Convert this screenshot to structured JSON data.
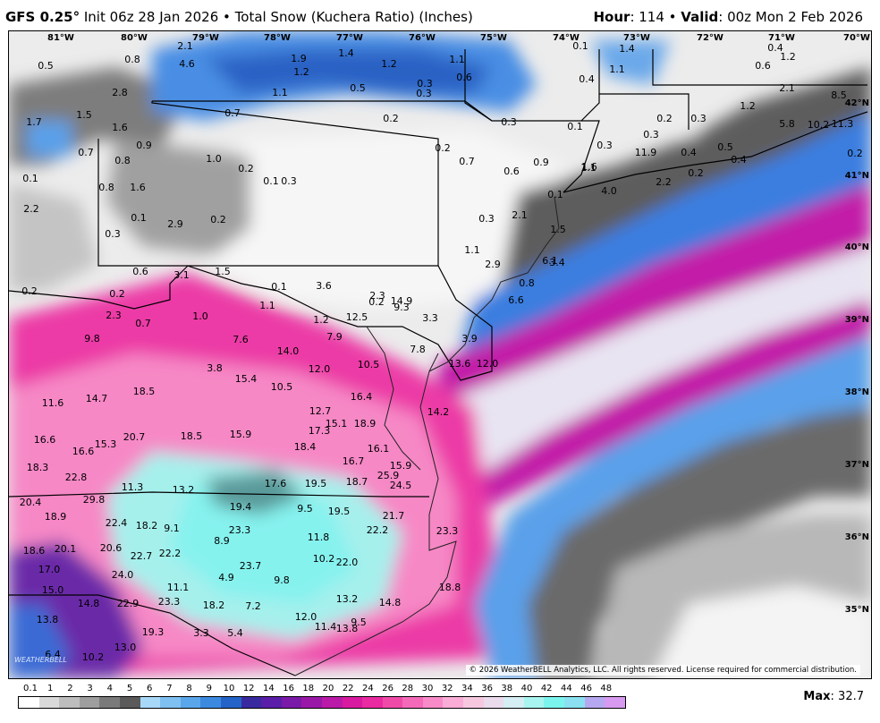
{
  "header": {
    "model": "GFS 0.25°",
    "description": "Init 06z 28 Jan 2026 • Total Snow (Kuchera Ratio) (Inches)",
    "hour_label": "Hour",
    "hour": "114",
    "valid_label": "Valid",
    "valid": "00z Mon 2 Feb 2026"
  },
  "map": {
    "longitudes": [
      "81°W",
      "80°W",
      "79°W",
      "78°W",
      "77°W",
      "76°W",
      "75°W",
      "74°W",
      "73°W",
      "72°W",
      "71°W",
      "70°W"
    ],
    "latitudes": [
      "42°N",
      "41°N",
      "40°N",
      "39°N",
      "38°N",
      "37°N",
      "36°N",
      "35°N"
    ],
    "copyright": "© 2026 WeatherBELL Analytics, LLC. All rights reserved. License required for commercial distribution.",
    "logo": "WEATHERBELL",
    "values": [
      {
        "t": "2.1"
      },
      {
        "t": "0.8"
      },
      {
        "t": "4.6"
      },
      {
        "t": "2.8"
      },
      {
        "t": "1.9"
      },
      {
        "t": "1.4"
      },
      {
        "t": "1.2"
      },
      {
        "t": "1.1"
      },
      {
        "t": "0.1"
      },
      {
        "t": "1.4"
      },
      {
        "t": "0.4"
      },
      {
        "t": "1.2"
      },
      {
        "t": "0.5"
      },
      {
        "t": "1.2"
      },
      {
        "t": "0.6"
      },
      {
        "t": "0.3"
      },
      {
        "t": "0.5"
      },
      {
        "t": "0.3"
      },
      {
        "t": "1.1"
      },
      {
        "t": "0.4"
      },
      {
        "t": "0.6"
      },
      {
        "t": "1.1"
      },
      {
        "t": "2.1"
      },
      {
        "t": "8.5"
      },
      {
        "t": "1.5"
      },
      {
        "t": "1.7"
      },
      {
        "t": "1.6"
      },
      {
        "t": "0.7"
      },
      {
        "t": "0.2"
      },
      {
        "t": "0.3"
      },
      {
        "t": "0.2"
      },
      {
        "t": "0.3"
      },
      {
        "t": "1.2"
      },
      {
        "t": "5.8"
      },
      {
        "t": "10.2"
      },
      {
        "t": "11.3"
      },
      {
        "t": "0.9"
      },
      {
        "t": "0.7"
      },
      {
        "t": "0.1"
      },
      {
        "t": "0.3"
      },
      {
        "t": "0.3"
      },
      {
        "t": "0.8"
      },
      {
        "t": "1.0"
      },
      {
        "t": "0.2"
      },
      {
        "t": "0.1"
      },
      {
        "t": "0.2"
      },
      {
        "t": "0.7"
      },
      {
        "t": "0.6"
      },
      {
        "t": "0.9"
      },
      {
        "t": "1.1"
      },
      {
        "t": "11.9"
      },
      {
        "t": "0.4"
      },
      {
        "t": "0.5"
      },
      {
        "t": "0.2"
      },
      {
        "t": "0.1"
      },
      {
        "t": "0.3"
      },
      {
        "t": "0.8"
      },
      {
        "t": "1.6"
      },
      {
        "t": "0.1"
      },
      {
        "t": "1.6"
      },
      {
        "t": "4.0"
      },
      {
        "t": "2.2"
      },
      {
        "t": "0.2"
      },
      {
        "t": "0.4"
      },
      {
        "t": "2.2"
      },
      {
        "t": "0.1"
      },
      {
        "t": "0.2"
      },
      {
        "t": "0.3"
      },
      {
        "t": "2.1"
      },
      {
        "t": "1.5"
      },
      {
        "t": "0.3"
      },
      {
        "t": "2.9"
      },
      {
        "t": "1.1"
      },
      {
        "t": "2.9"
      },
      {
        "t": "6.1"
      },
      {
        "t": "0.6"
      },
      {
        "t": "3.1"
      },
      {
        "t": "1.5"
      },
      {
        "t": "0.8"
      },
      {
        "t": "3.4"
      },
      {
        "t": "0.2"
      },
      {
        "t": "0.2"
      },
      {
        "t": "0.1"
      },
      {
        "t": "3.6"
      },
      {
        "t": "2.3"
      },
      {
        "t": "0.2"
      },
      {
        "t": "9.3"
      },
      {
        "t": "6.6"
      },
      {
        "t": "1.1"
      },
      {
        "t": "14.9"
      },
      {
        "t": "2.3"
      },
      {
        "t": "0.7"
      },
      {
        "t": "1.0"
      },
      {
        "t": "1.2"
      },
      {
        "t": "12.5"
      },
      {
        "t": "3.3"
      },
      {
        "t": "9.8"
      },
      {
        "t": "7.9"
      },
      {
        "t": "7.6"
      },
      {
        "t": "3.9"
      },
      {
        "t": "14.0"
      },
      {
        "t": "7.8"
      },
      {
        "t": "3.8"
      },
      {
        "t": "12.0"
      },
      {
        "t": "10.5"
      },
      {
        "t": "13.6"
      },
      {
        "t": "12.0"
      },
      {
        "t": "15.4"
      },
      {
        "t": "10.5"
      },
      {
        "t": "18.5"
      },
      {
        "t": "16.4"
      },
      {
        "t": "11.6"
      },
      {
        "t": "14.7"
      },
      {
        "t": "12.7"
      },
      {
        "t": "14.2"
      },
      {
        "t": "15.1"
      },
      {
        "t": "17.3"
      },
      {
        "t": "18.9"
      },
      {
        "t": "20.7"
      },
      {
        "t": "18.5"
      },
      {
        "t": "15.9"
      },
      {
        "t": "16.6"
      },
      {
        "t": "15.3"
      },
      {
        "t": "18.4"
      },
      {
        "t": "16.6"
      },
      {
        "t": "16.1"
      },
      {
        "t": "16.7"
      },
      {
        "t": "18.3"
      },
      {
        "t": "15.9"
      },
      {
        "t": "25.9"
      },
      {
        "t": "22.8"
      },
      {
        "t": "17.6"
      },
      {
        "t": "19.5"
      },
      {
        "t": "18.7"
      },
      {
        "t": "24.5"
      },
      {
        "t": "11.3"
      },
      {
        "t": "13.2"
      },
      {
        "t": "29.8"
      },
      {
        "t": "20.4"
      },
      {
        "t": "19.4"
      },
      {
        "t": "9.5"
      },
      {
        "t": "19.5"
      },
      {
        "t": "18.9"
      },
      {
        "t": "21.7"
      },
      {
        "t": "22.4"
      },
      {
        "t": "18.2"
      },
      {
        "t": "9.1"
      },
      {
        "t": "22.2"
      },
      {
        "t": "23.3"
      },
      {
        "t": "23.3"
      },
      {
        "t": "8.9"
      },
      {
        "t": "11.8"
      },
      {
        "t": "18.6"
      },
      {
        "t": "20.1"
      },
      {
        "t": "20.6"
      },
      {
        "t": "22.7"
      },
      {
        "t": "22.2"
      },
      {
        "t": "10.2"
      },
      {
        "t": "22.0"
      },
      {
        "t": "17.0"
      },
      {
        "t": "23.7"
      },
      {
        "t": "24.0"
      },
      {
        "t": "4.9"
      },
      {
        "t": "9.8"
      },
      {
        "t": "18.8"
      },
      {
        "t": "15.0"
      },
      {
        "t": "11.1"
      },
      {
        "t": "13.2"
      },
      {
        "t": "14.8"
      },
      {
        "t": "22.9"
      },
      {
        "t": "23.3"
      },
      {
        "t": "18.2"
      },
      {
        "t": "7.2"
      },
      {
        "t": "14.8"
      },
      {
        "t": "13.8"
      },
      {
        "t": "12.0"
      },
      {
        "t": "11.4"
      },
      {
        "t": "9.5"
      },
      {
        "t": "13.8"
      },
      {
        "t": "19.3"
      },
      {
        "t": "3.3"
      },
      {
        "t": "5.4"
      },
      {
        "t": "6.4"
      },
      {
        "t": "10.2"
      },
      {
        "t": "13.0"
      }
    ]
  },
  "legend": {
    "labels": [
      "0.1",
      "1",
      "2",
      "3",
      "4",
      "5",
      "6",
      "7",
      "8",
      "9",
      "10",
      "12",
      "14",
      "16",
      "18",
      "20",
      "22",
      "24",
      "26",
      "28",
      "30",
      "32",
      "34",
      "36",
      "38",
      "40",
      "42",
      "44",
      "46",
      "48"
    ],
    "colors": [
      "#ffffff",
      "#d9d9d9",
      "#bdbdbd",
      "#9e9e9e",
      "#7a7a7a",
      "#5a5a5a",
      "#a8d8f8",
      "#7fc0f2",
      "#5aa6ea",
      "#3b8ae0",
      "#2463c8",
      "#3a2aa0",
      "#5a1ea8",
      "#7a1aa8",
      "#9a18a8",
      "#ba1aa8",
      "#d81aa0",
      "#ea2aa0",
      "#f04aa8",
      "#f46ab8",
      "#f88ac8",
      "#f8acd6",
      "#f6c8e0",
      "#eadcec",
      "#d4eef4",
      "#a8f4f0",
      "#7cf4ee",
      "#8ae0f0",
      "#b6a8f0",
      "#d89af0"
    ],
    "max_label": "Max",
    "max_value": "32.7"
  }
}
